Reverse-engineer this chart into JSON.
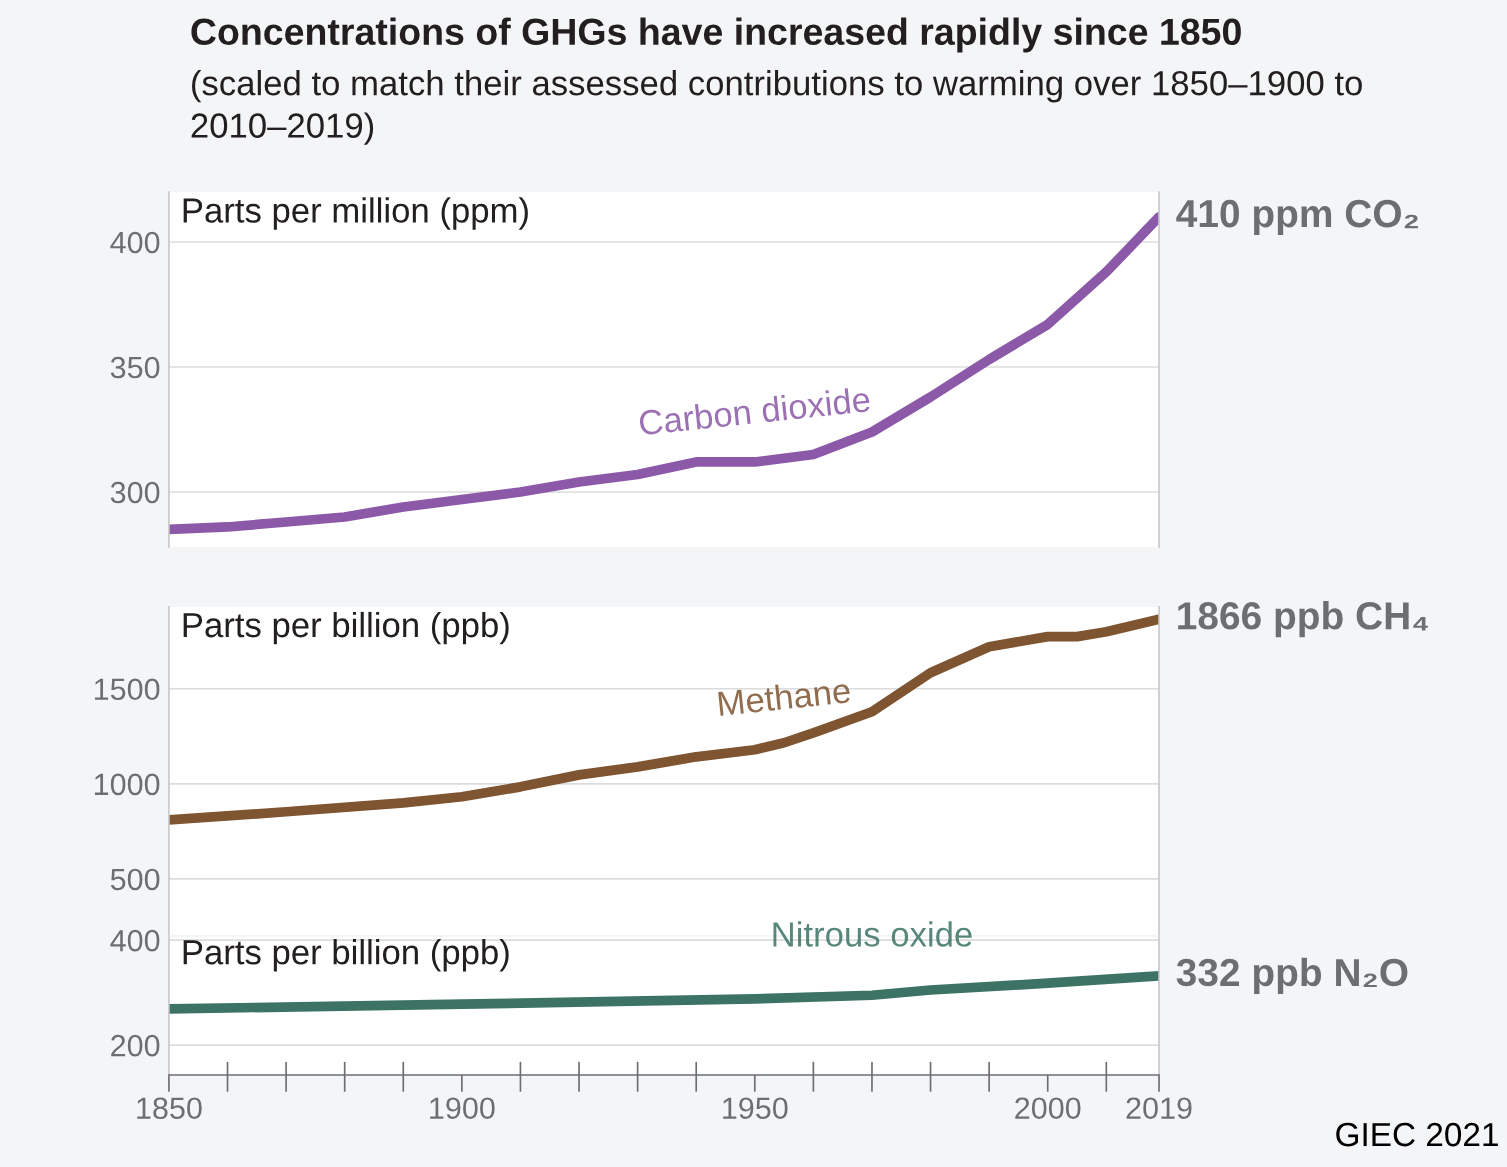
{
  "chart_data": [
    {
      "type": "line",
      "title": "Concentrations of GHGs have increased rapidly since 1850",
      "subtitle": "(scaled to match their assessed contributions to warming over 1850–1900 to 2010–2019)",
      "ylabel": "Parts per million (ppm)",
      "x": [
        1850,
        1860,
        1870,
        1880,
        1890,
        1900,
        1910,
        1920,
        1930,
        1940,
        1945,
        1950,
        1960,
        1970,
        1975,
        1980,
        1990,
        2000,
        2010,
        2019
      ],
      "series": [
        {
          "name": "Carbon dioxide",
          "color": "#8b59a8",
          "values": [
            285,
            286,
            288,
            290,
            294,
            297,
            300,
            304,
            307,
            312,
            312,
            312,
            315,
            324,
            331,
            338,
            353,
            367,
            388,
            410
          ]
        }
      ],
      "xlim": [
        1850,
        2019
      ],
      "ylim": [
        278,
        420
      ],
      "yticks": [
        300,
        350,
        400
      ],
      "tick_labels": "y",
      "grid": "y",
      "annotations": [
        "410 ppm CO₂"
      ]
    },
    {
      "type": "line",
      "ylabel": "Parts per billion (ppb)",
      "x": [
        1850,
        1870,
        1890,
        1900,
        1910,
        1920,
        1930,
        1940,
        1950,
        1955,
        1960,
        1970,
        1980,
        1990,
        2000,
        2005,
        2010,
        2019
      ],
      "series": [
        {
          "name": "Methane",
          "color": "#7e5431",
          "values": [
            810,
            853,
            900,
            932,
            984,
            1047,
            1089,
            1142,
            1179,
            1216,
            1268,
            1379,
            1584,
            1721,
            1774,
            1774,
            1800,
            1866
          ]
        }
      ],
      "xlim": [
        1850,
        2019
      ],
      "ylim": [
        205,
        1930
      ],
      "yticks": [
        500,
        1000,
        1500
      ],
      "tick_labels": "y",
      "grid": "y",
      "annotations": [
        "1866 ppb CH₄"
      ]
    },
    {
      "type": "line",
      "ylabel": "Parts per billion (ppb)",
      "x": [
        1850,
        1900,
        1950,
        1970,
        1980,
        2000,
        2019
      ],
      "series": [
        {
          "name": "Nitrous oxide",
          "color": "#3c7364",
          "values": [
            269,
            278,
            288,
            295,
            305,
            318,
            332
          ]
        }
      ],
      "xlim": [
        1850,
        2019
      ],
      "xticks": [
        1850,
        {
          "value": 1860,
          "label": null
        },
        {
          "value": 1870,
          "label": null
        },
        {
          "value": 1880,
          "label": null
        },
        {
          "value": 1890,
          "label": null
        },
        1900,
        {
          "value": 1910,
          "label": null
        },
        {
          "value": 1920,
          "label": null
        },
        {
          "value": 1930,
          "label": null
        },
        {
          "value": 1940,
          "label": null
        },
        1950,
        {
          "value": 1960,
          "label": null
        },
        {
          "value": 1970,
          "label": null
        },
        {
          "value": 1980,
          "label": null
        },
        {
          "value": 1990,
          "label": null
        },
        2000,
        {
          "value": 2010,
          "label": null
        },
        2019
      ],
      "ylim": [
        143,
        406
      ],
      "yticks": [
        200,
        400
      ],
      "grid": "y",
      "annotations": [
        "332 ppb N₂O",
        "GIEC 2021"
      ]
    }
  ]
}
